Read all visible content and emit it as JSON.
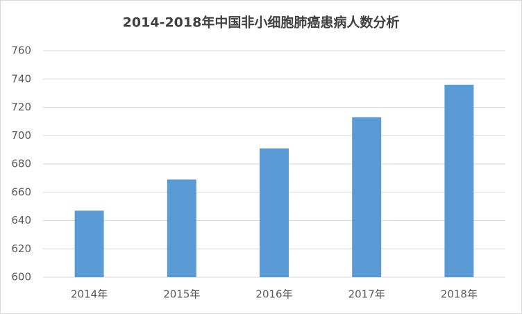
{
  "chart_data": {
    "type": "bar",
    "title": "2014-2018年中国非小细胞肺癌患病人数分析",
    "categories": [
      "2014年",
      "2015年",
      "2016年",
      "2017年",
      "2018年"
    ],
    "values": [
      647,
      669,
      691,
      713,
      736
    ],
    "color": "#5b9bd5",
    "ylim": [
      600,
      760
    ],
    "yticks": [
      600,
      620,
      640,
      660,
      680,
      700,
      720,
      740,
      760
    ],
    "grid": true
  }
}
